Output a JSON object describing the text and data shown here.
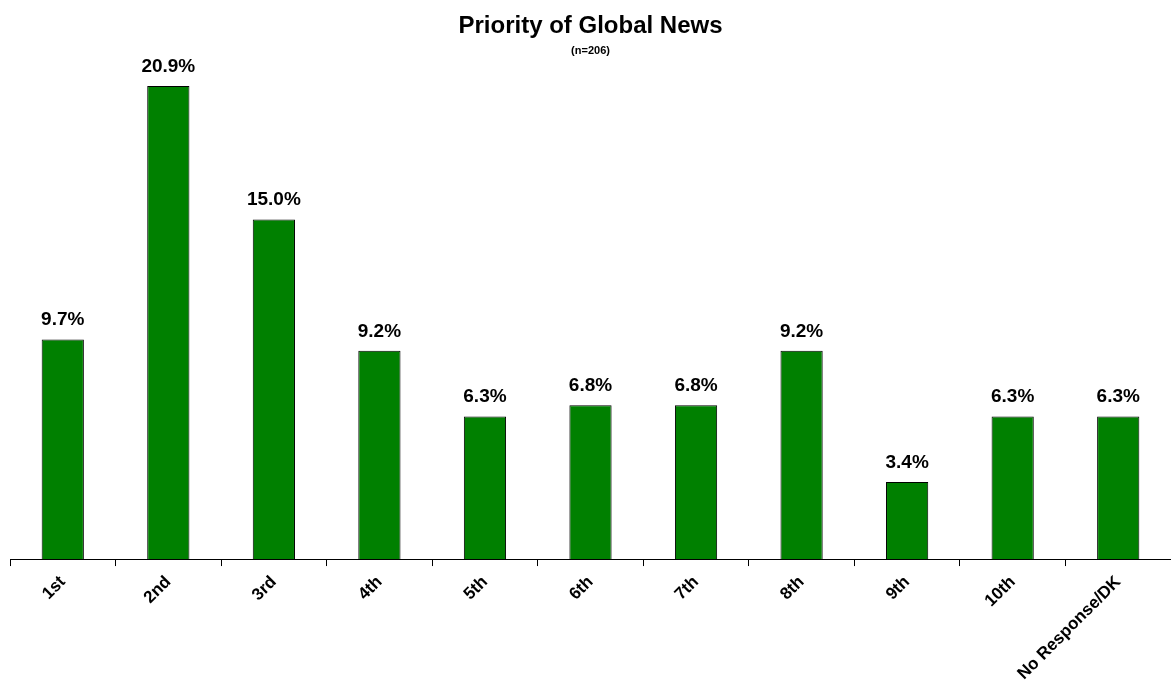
{
  "chart_data": {
    "type": "bar",
    "title": "Priority of Global News",
    "subtitle": "(n=206)",
    "categories": [
      "1st",
      "2nd",
      "3rd",
      "4th",
      "5th",
      "6th",
      "7th",
      "8th",
      "9th",
      "10th",
      "No Response/DK"
    ],
    "values": [
      9.7,
      20.9,
      15.0,
      9.2,
      6.3,
      6.8,
      6.8,
      9.2,
      3.4,
      6.3,
      6.3
    ],
    "value_labels": [
      "9.7%",
      "20.9%",
      "15.0%",
      "9.2%",
      "6.3%",
      "6.8%",
      "6.8%",
      "9.2%",
      "3.4%",
      "6.3%",
      "6.3%"
    ],
    "color": "#008000",
    "grid": false,
    "legend": false
  }
}
